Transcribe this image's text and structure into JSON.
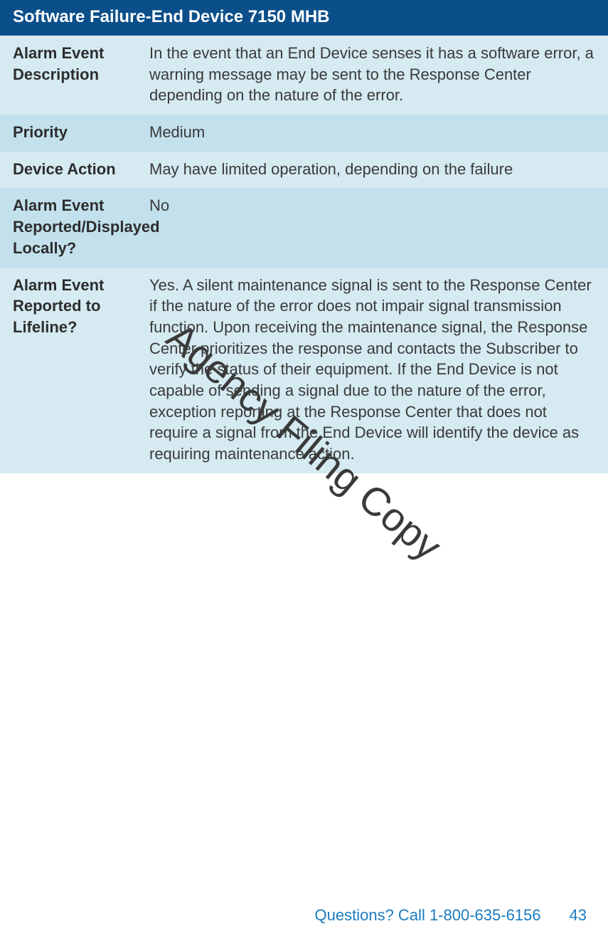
{
  "colors": {
    "header_bg": "#0b4f8a",
    "shade_a": "#d5eaf1",
    "shade_b": "#c2e1ec",
    "footer_blue": "#1a7bbf"
  },
  "header": {
    "title": "Software Failure-End Device 7150 MHB"
  },
  "rows": [
    {
      "label": "Alarm Event Description",
      "value": "In the event that an End Device senses it has a software error, a warning message may be sent to the Response Center depending on the nature of the error."
    },
    {
      "label": "Priority",
      "value": "Medium"
    },
    {
      "label": "Device Action",
      "value": "May have limited operation, depending on the failure"
    },
    {
      "label": "Alarm Event Reported/Displayed Locally?",
      "value": "No"
    },
    {
      "label": "Alarm Event Reported to Lifeline?",
      "value": "Yes. A silent maintenance signal is sent to the Response Center if the nature of the error does not impair signal transmission function. Upon receiving the maintenance signal, the Response Center prioritizes the response and contacts the Subscriber to verify the status of their equipment. If the End Device is not capable of sending a signal due to the nature of the error, exception reporting at the Response Center that does not require a signal from the End Device will identify the device as requiring maintenance action."
    }
  ],
  "watermark": "Agency Filing Copy",
  "footer": {
    "questions": "Questions? Call 1-800-635-6156",
    "page": "43"
  }
}
